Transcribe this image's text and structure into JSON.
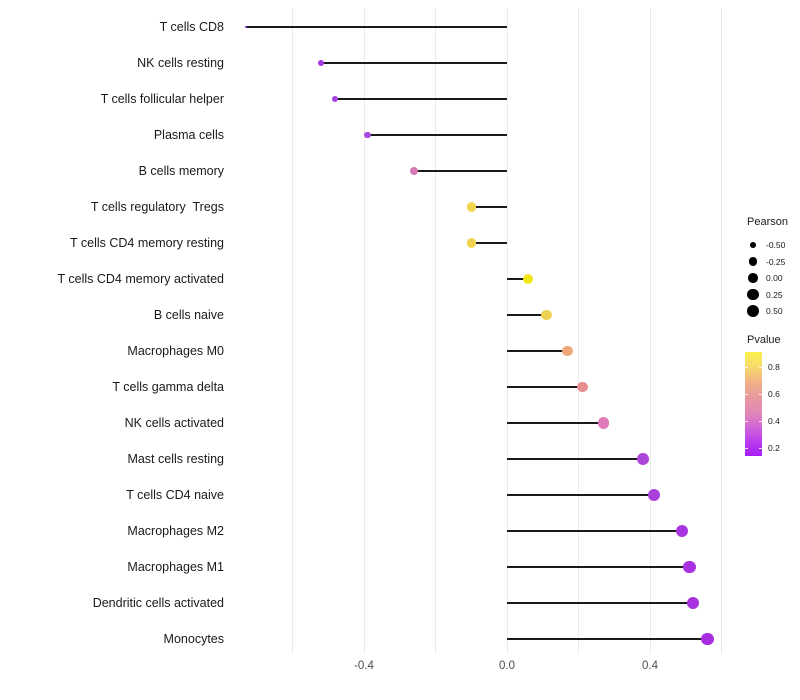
{
  "chart_data": {
    "type": "scatter",
    "subtype": "lollipop",
    "title": "",
    "xlabel": "",
    "ylabel": "",
    "grid": true,
    "legend_position": "right",
    "encoding": {
      "size": "Pearson",
      "color": "Pvalue",
      "x": "Pearson correlation",
      "y": "cell type"
    },
    "x_axis": {
      "tick_values": [
        -0.4,
        0.0,
        0.4
      ],
      "tick_labels": [
        "-0.4",
        "0.0",
        "0.4"
      ],
      "gridline_values": [
        -0.6,
        -0.4,
        -0.2,
        0.0,
        0.2,
        0.4,
        0.6
      ],
      "xlim": [
        -0.77,
        0.62
      ]
    },
    "points": [
      {
        "label": "T cells CD8",
        "pearson": -0.73,
        "pvalue_est": 0.12,
        "color": "#8326D8"
      },
      {
        "label": "NK cells resting",
        "pearson": -0.52,
        "pvalue_est": 0.14,
        "color": "#A63AE0"
      },
      {
        "label": "T cells follicular helper",
        "pearson": -0.48,
        "pvalue_est": 0.14,
        "color": "#A741E0"
      },
      {
        "label": "Plasma cells",
        "pearson": -0.39,
        "pvalue_est": 0.15,
        "color": "#A847E0"
      },
      {
        "label": "B cells memory",
        "pearson": -0.26,
        "pvalue_est": 0.33,
        "color": "#D779B7"
      },
      {
        "label": "T cells regulatory  Tregs",
        "pearson": -0.1,
        "pvalue_est": 0.68,
        "color": "#F1D44E"
      },
      {
        "label": "T cells CD4 memory resting",
        "pearson": -0.1,
        "pvalue_est": 0.68,
        "color": "#F1D44E"
      },
      {
        "label": "T cells CD4 memory activated",
        "pearson": 0.06,
        "pvalue_est": 0.82,
        "color": "#F2E51C"
      },
      {
        "label": "B cells naive",
        "pearson": 0.11,
        "pvalue_est": 0.66,
        "color": "#EED055"
      },
      {
        "label": "Macrophages M0",
        "pearson": 0.17,
        "pvalue_est": 0.55,
        "color": "#EFA87A"
      },
      {
        "label": "T cells gamma delta",
        "pearson": 0.21,
        "pvalue_est": 0.47,
        "color": "#E78F90"
      },
      {
        "label": "NK cells activated",
        "pearson": 0.27,
        "pvalue_est": 0.36,
        "color": "#E07AB8"
      },
      {
        "label": "Mast cells resting",
        "pearson": 0.38,
        "pvalue_est": 0.18,
        "color": "#AD46D8"
      },
      {
        "label": "T cells CD4 naive",
        "pearson": 0.41,
        "pvalue_est": 0.15,
        "color": "#AB3FDC"
      },
      {
        "label": "Macrophages M2",
        "pearson": 0.49,
        "pvalue_est": 0.13,
        "color": "#A935E0"
      },
      {
        "label": "Macrophages M1",
        "pearson": 0.51,
        "pvalue_est": 0.13,
        "color": "#A832E0"
      },
      {
        "label": "Dendritic cells activated",
        "pearson": 0.52,
        "pvalue_est": 0.13,
        "color": "#A832E0"
      },
      {
        "label": "Monocytes",
        "pearson": 0.56,
        "pvalue_est": 0.12,
        "color": "#A82CE2"
      }
    ]
  },
  "legend": {
    "pearson": {
      "title": "Pearson",
      "dot_color": "#000000",
      "items": [
        {
          "label": "-0.50",
          "value": -0.5
        },
        {
          "label": "-0.25",
          "value": -0.25
        },
        {
          "label": "0.00",
          "value": 0.0
        },
        {
          "label": "0.25",
          "value": 0.25
        },
        {
          "label": "0.50",
          "value": 0.5
        }
      ]
    },
    "pvalue": {
      "title": "Pvalue",
      "tick_labels": [
        "0.8",
        "0.6",
        "0.4",
        "0.2"
      ],
      "gradient": [
        "#FBF24A",
        "#F8DA6E",
        "#F1B384",
        "#E9999E",
        "#E289B4",
        "#D368D6",
        "#BB3EEC",
        "#A71EF4"
      ]
    }
  },
  "layout_colors": {
    "stem": "#1A1A1A",
    "gridline": "#EBEBEB",
    "axis_text": "#4D4D4D",
    "label_text": "#1A1A1A"
  }
}
